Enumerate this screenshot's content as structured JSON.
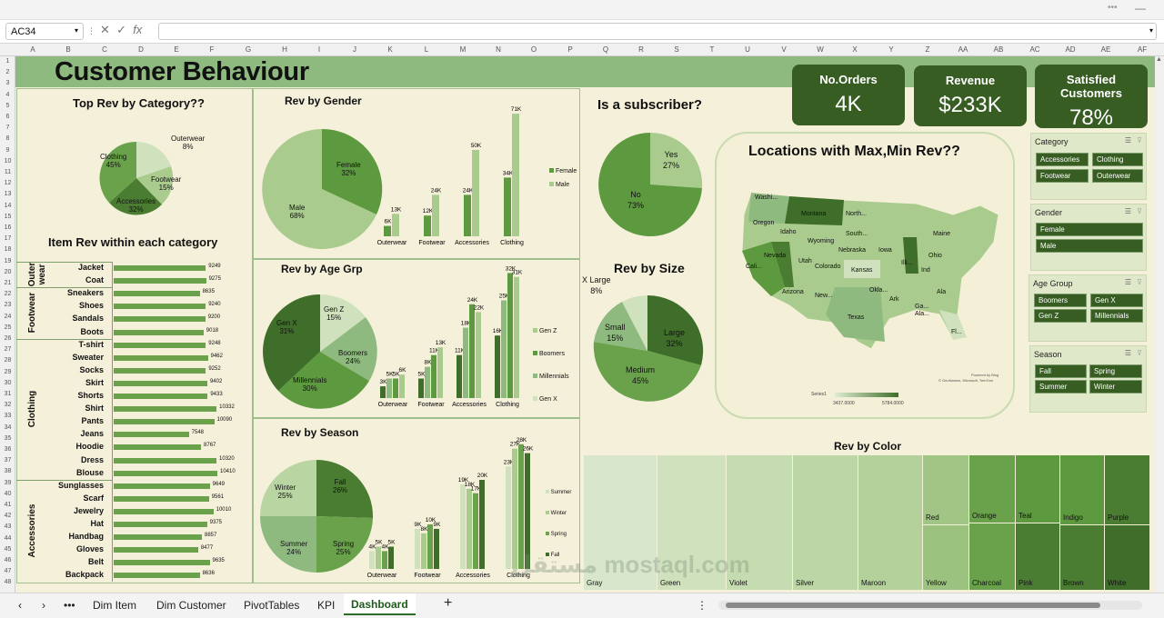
{
  "namebox": "AC34",
  "fx": "fx",
  "columns": [
    "A",
    "B",
    "C",
    "D",
    "E",
    "F",
    "G",
    "H",
    "I",
    "J",
    "K",
    "L",
    "M",
    "N",
    "O",
    "P",
    "Q",
    "R",
    "S",
    "T",
    "U",
    "V",
    "W",
    "X",
    "Y",
    "Z",
    "AA",
    "AB",
    "AC",
    "AD",
    "AE",
    "AF"
  ],
  "title": "Customer Behaviour",
  "kpis": [
    {
      "label": "No.Orders",
      "value": "4K"
    },
    {
      "label": "Revenue",
      "value": "$233K"
    },
    {
      "label": "Satisfied Customers",
      "value": "78%"
    }
  ],
  "top_rev": {
    "title": "Top Rev by Category??",
    "slices": [
      {
        "name": "Clothing",
        "pct": "45%"
      },
      {
        "name": "Outerwear",
        "pct": "8%"
      },
      {
        "name": "Footwear",
        "pct": "15%"
      },
      {
        "name": "Accessories",
        "pct": "32%"
      }
    ]
  },
  "item_rev": {
    "title": "Item Rev within each category",
    "groups": [
      {
        "name": "Outer wear"
      },
      {
        "name": "Footwear"
      },
      {
        "name": "Clothing"
      },
      {
        "name": "Accessories"
      }
    ],
    "items": [
      {
        "name": "Jacket",
        "value": 9249
      },
      {
        "name": "Coat",
        "value": 9275
      },
      {
        "name": "Sneakers",
        "value": 8635
      },
      {
        "name": "Shoes",
        "value": 9240
      },
      {
        "name": "Sandals",
        "value": 9200
      },
      {
        "name": "Boots",
        "value": 9018
      },
      {
        "name": "T-shirt",
        "value": 9248
      },
      {
        "name": "Sweater",
        "value": 9462
      },
      {
        "name": "Socks",
        "value": 9252
      },
      {
        "name": "Skirt",
        "value": 9402
      },
      {
        "name": "Shorts",
        "value": 9433
      },
      {
        "name": "Shirt",
        "value": 10332
      },
      {
        "name": "Pants",
        "value": 10090
      },
      {
        "name": "Jeans",
        "value": 7548
      },
      {
        "name": "Hoodie",
        "value": 8767
      },
      {
        "name": "Dress",
        "value": 10320
      },
      {
        "name": "Blouse",
        "value": 10410
      },
      {
        "name": "Sunglasses",
        "value": 9649
      },
      {
        "name": "Scarf",
        "value": 9561
      },
      {
        "name": "Jewelry",
        "value": 10010
      },
      {
        "name": "Hat",
        "value": 9375
      },
      {
        "name": "Handbag",
        "value": 8857
      },
      {
        "name": "Gloves",
        "value": 8477
      },
      {
        "name": "Belt",
        "value": 9635
      },
      {
        "name": "Backpack",
        "value": 8636
      }
    ]
  },
  "gender": {
    "title": "Rev by Gender",
    "pie": [
      {
        "name": "Female",
        "pct": "32%"
      },
      {
        "name": "Male",
        "pct": "68%"
      }
    ],
    "legend": [
      "Female",
      "Male"
    ],
    "chart_data": {
      "type": "bar",
      "categories": [
        "Outerwear",
        "Footwear",
        "Accessories",
        "Clothing"
      ],
      "series": [
        {
          "name": "Female",
          "values": [
            6,
            12,
            24,
            34
          ],
          "labels": [
            "6K",
            "12K",
            "24K",
            "34K"
          ]
        },
        {
          "name": "Male",
          "values": [
            13,
            24,
            50,
            71
          ],
          "labels": [
            "13K",
            "24K",
            "50K",
            "71K"
          ]
        }
      ]
    }
  },
  "age": {
    "title": "Rev by Age Grp",
    "pie": [
      {
        "name": "Gen Z",
        "pct": "15%"
      },
      {
        "name": "Boomers",
        "pct": "24%"
      },
      {
        "name": "Millennials",
        "pct": "30%"
      },
      {
        "name": "Gen X",
        "pct": "31%"
      }
    ],
    "legend": [
      "Gen Z",
      "Boomers",
      "Millennials",
      "Gen X"
    ],
    "chart_data": {
      "type": "bar",
      "categories": [
        "Outerwear",
        "Footwear",
        "Accessories",
        "Clothing"
      ],
      "series": [
        {
          "name": "Gen X",
          "values": [
            3,
            5,
            11,
            16
          ],
          "labels": [
            "3K",
            "5K",
            "11K",
            "16K"
          ]
        },
        {
          "name": "Millennials",
          "values": [
            5,
            8,
            18,
            25
          ],
          "labels": [
            "5K",
            "8K",
            "18K",
            "25K"
          ]
        },
        {
          "name": "Boomers",
          "values": [
            5,
            11,
            24,
            32
          ],
          "labels": [
            "5K",
            "11K",
            "24K",
            "32K"
          ]
        },
        {
          "name": "Gen Z",
          "values": [
            6,
            13,
            22,
            31
          ],
          "labels": [
            "6K",
            "13K",
            "22K",
            "31K"
          ]
        }
      ]
    }
  },
  "season": {
    "title": "Rev by Season",
    "pie": [
      {
        "name": "Winter",
        "pct": "25%"
      },
      {
        "name": "Fall",
        "pct": "26%"
      },
      {
        "name": "Spring",
        "pct": "25%"
      },
      {
        "name": "Summer",
        "pct": "24%"
      }
    ],
    "legend": [
      "Summer",
      "Winter",
      "Spring",
      "Fall"
    ],
    "chart_data": {
      "type": "bar",
      "categories": [
        "Outerwear",
        "Footwear",
        "Accessories",
        "Clothing"
      ],
      "series": [
        {
          "name": "Summer",
          "values": [
            4,
            9,
            19,
            23
          ],
          "labels": [
            "4K",
            "9K",
            "19K",
            "23K"
          ]
        },
        {
          "name": "Winter",
          "values": [
            5,
            8,
            18,
            27
          ],
          "labels": [
            "5K",
            "8K",
            "18K",
            "27K"
          ]
        },
        {
          "name": "Spring",
          "values": [
            4,
            10,
            17,
            28
          ],
          "labels": [
            "4K",
            "10K",
            "17K",
            "28K"
          ]
        },
        {
          "name": "Fall",
          "values": [
            5,
            9,
            20,
            26
          ],
          "labels": [
            "5K",
            "9K",
            "20K",
            "26K"
          ]
        }
      ]
    }
  },
  "subscriber": {
    "title": "Is a subscriber?",
    "slices": [
      {
        "name": "Yes",
        "pct": "27%"
      },
      {
        "name": "No",
        "pct": "73%"
      }
    ]
  },
  "size": {
    "title": "Rev by Size",
    "slices": [
      {
        "name": "X Large",
        "pct": "8%"
      },
      {
        "name": "Large",
        "pct": "32%"
      },
      {
        "name": "Medium",
        "pct": "45%"
      },
      {
        "name": "Small",
        "pct": "15%"
      }
    ]
  },
  "map": {
    "title": "Locations with Max,Min Rev??",
    "states": [
      "Washi...",
      "Montana",
      "North...",
      "Oregon",
      "Idaho",
      "South...",
      "Wyoming",
      "Nebraska",
      "Iowa",
      "Maine",
      "Nevada",
      "Utah",
      "Colorado",
      "Kansas",
      "Illi...",
      "Ohio",
      "Cali...",
      "Okla...",
      "Arizona",
      "New...",
      "Texas",
      "Ark",
      "Ala",
      "Ga...",
      "Ala...",
      "Fl...",
      "Ind"
    ],
    "legend_series": "Series1",
    "min": "3437.0000",
    "max": "5784.0000",
    "credit1": "Powered by Bing",
    "credit2": "© GeoNames, Microsoft, TomTom"
  },
  "slicers": [
    {
      "title": "Category",
      "items": [
        "Accessories",
        "Clothing",
        "Footwear",
        "Outerwear"
      ]
    },
    {
      "title": "Gender",
      "items": [
        "Female",
        "Male"
      ]
    },
    {
      "title": "Age Group",
      "items": [
        "Boomers",
        "Gen X",
        "Gen Z",
        "Millennials"
      ]
    },
    {
      "title": "Season",
      "items": [
        "Fall",
        "Spring",
        "Summer",
        "Winter"
      ]
    }
  ],
  "color": {
    "title": "Rev by Color",
    "cells": [
      "Gray",
      "Green",
      "Violet",
      "Silver",
      "Maroon",
      "Red",
      "Yellow",
      "Orange",
      "Charcoal",
      "Teal",
      "Pink",
      "Indigo",
      "Brown",
      "Purple",
      "White"
    ]
  },
  "tabs": [
    "Dim Item",
    "Dim Customer",
    "PivotTables",
    "KPI",
    "Dashboard"
  ],
  "watermark": "مستقل mostaql.com",
  "colors": {
    "dark": "#375d23",
    "mid": "#5d9a3f",
    "light": "#a9cc8e",
    "pale": "#cfe2bd"
  }
}
